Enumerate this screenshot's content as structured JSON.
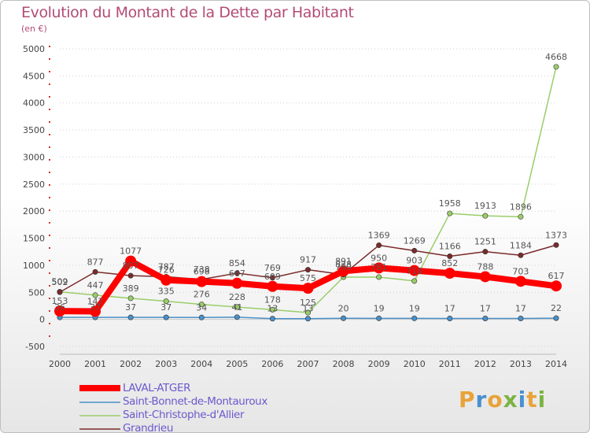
{
  "chart_data": {
    "type": "line",
    "title": "Evolution du Montant de la Dette par Habitant",
    "unit": "(en €)",
    "x": [
      "2000",
      "2001",
      "2002",
      "2003",
      "2004",
      "2005",
      "2006",
      "2007",
      "2008",
      "2009",
      "2010",
      "2011",
      "2012",
      "2013",
      "2014"
    ],
    "ylim": [
      -500,
      5000
    ],
    "yticks": [
      -500,
      0,
      500,
      1000,
      1500,
      2000,
      2500,
      3000,
      3500,
      4000,
      4500,
      5000
    ],
    "series": [
      {
        "name": "LAVAL-ATGER",
        "color": "#ff0000",
        "values": [
          153,
          147,
          1077,
          726,
          698,
          667,
          609,
          575,
          891,
          950,
          903,
          852,
          788,
          703,
          617
        ],
        "labels": [
          "153",
          "147",
          "1077",
          "726",
          "698",
          "667",
          "609",
          "575",
          "891",
          "950",
          "903",
          "852",
          "788",
          "703",
          "617"
        ]
      },
      {
        "name": "Saint-Bonnet-de-Montauroux",
        "color": "#4a90c8",
        "values": [
          36,
          37,
          37,
          37,
          34,
          41,
          13,
          13,
          20,
          19,
          19,
          17,
          17,
          17,
          22
        ],
        "labels": [
          "36",
          "37",
          "37",
          "37",
          "34",
          "41",
          "13",
          "13",
          "20",
          "19",
          "19",
          "17",
          "17",
          "17",
          "22"
        ]
      },
      {
        "name": "Saint-Christophe-d'Allier",
        "color": "#9acd6a",
        "values": [
          509,
          447,
          389,
          335,
          276,
          228,
          178,
          125,
          780,
          781,
          710,
          1958,
          1913,
          1896,
          4668
        ],
        "labels": [
          "509",
          "447",
          "389",
          "335",
          "276",
          "228",
          "178",
          "125",
          "780",
          "781",
          "710",
          "1958",
          "1913",
          "1896",
          "4668"
        ]
      },
      {
        "name": "Grandrieu",
        "color": "#7a2a2a",
        "values": [
          502,
          877,
          807,
          787,
          738,
          854,
          769,
          917,
          828,
          1369,
          1269,
          1166,
          1251,
          1184,
          1373
        ],
        "labels": [
          "502",
          "877",
          "807",
          "787",
          "738",
          "854",
          "769",
          "917",
          "828",
          "1369",
          "1269",
          "1166",
          "1251",
          "1184",
          "1373"
        ]
      }
    ]
  },
  "legend": {
    "items": [
      {
        "label": "LAVAL-ATGER"
      },
      {
        "label": "Saint-Bonnet-de-Montauroux"
      },
      {
        "label": "Saint-Christophe-d'Allier"
      },
      {
        "label": "Grandrieu"
      }
    ]
  },
  "logo": {
    "letters": [
      "P",
      "r",
      "o",
      "x",
      "i",
      "t",
      "i"
    ],
    "colors": [
      "#e8a33a",
      "#4a8fd0",
      "#e8a33a",
      "#7cb342",
      "#4a8fd0",
      "#e8a33a",
      "#7cb342"
    ]
  }
}
